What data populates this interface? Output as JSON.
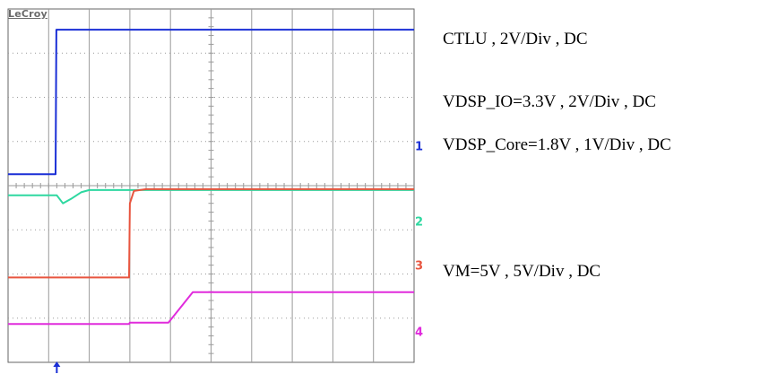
{
  "brand": "LeCroy",
  "chart_data": {
    "type": "line",
    "title": "",
    "xlabel": "",
    "ylabel": "",
    "grid": true,
    "x_divisions": 10,
    "y_divisions": 8,
    "xlim": [
      0,
      10
    ],
    "ylim": [
      0,
      8
    ],
    "series": [
      {
        "name": "CTLU , 2V/Div , DC",
        "channel": "1",
        "color": "#1a2fd6",
        "x": [
          0,
          1.17,
          1.19,
          10
        ],
        "y": [
          4.26,
          4.26,
          7.53,
          7.53
        ]
      },
      {
        "name": "VDSP_IO=3.3V , 2V/Div , DC",
        "channel": "2",
        "color": "#2ed8a0",
        "x": [
          0,
          1.2,
          1.35,
          1.55,
          1.8,
          2.0,
          10
        ],
        "y": [
          3.78,
          3.78,
          3.6,
          3.7,
          3.85,
          3.9,
          3.9
        ]
      },
      {
        "name": "VDSP_Core=1.8V , 1V/Div , DC",
        "channel": "3",
        "color": "#e8553f",
        "x": [
          0,
          2.98,
          3.0,
          3.1,
          3.4,
          10
        ],
        "y": [
          1.92,
          1.92,
          3.6,
          3.88,
          3.92,
          3.92
        ]
      },
      {
        "name": "VM=5V , 5V/Div , DC",
        "channel": "4",
        "color": "#e02bdc",
        "x": [
          0,
          2.98,
          3.0,
          3.95,
          4.55,
          10
        ],
        "y": [
          0.87,
          0.87,
          0.9,
          0.9,
          1.59,
          1.59
        ]
      }
    ],
    "channel_markers": [
      {
        "label": "1",
        "y": 4.8,
        "color": "#1a2fd6"
      },
      {
        "label": "2",
        "y": 3.1,
        "color": "#2ed8a0"
      },
      {
        "label": "3",
        "y": 2.1,
        "color": "#e8553f"
      },
      {
        "label": "4",
        "y": 0.6,
        "color": "#e02bdc"
      }
    ],
    "trigger_x": 1.2
  }
}
